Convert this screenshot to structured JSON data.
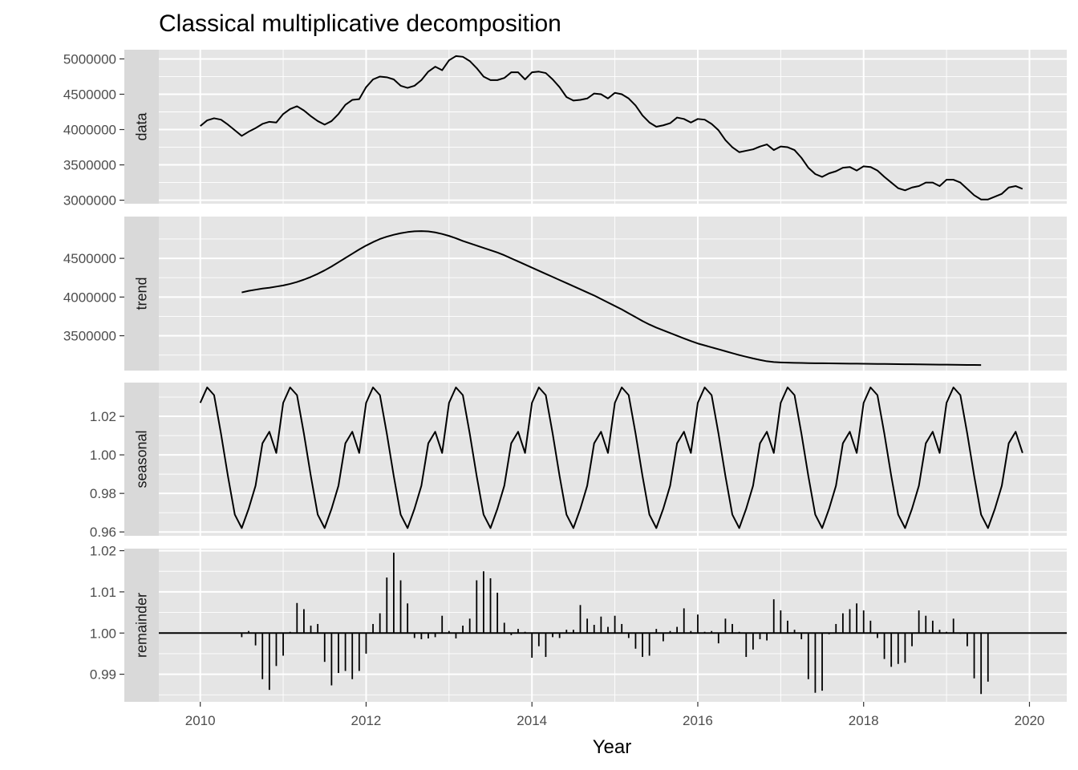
{
  "chart_data": {
    "type": "line",
    "title": "Classical multiplicative decomposition",
    "xlabel": "Year",
    "x_ticks": [
      2010,
      2012,
      2014,
      2016,
      2018,
      2020
    ],
    "xlim": [
      2009.5,
      2020.45
    ],
    "x_start": 2010.0,
    "x_step": 0.0833333,
    "grid": true,
    "legend": "none",
    "colors": {
      "panel": "#e5e5e5",
      "strip": "#d9d9d9",
      "grid": "#ffffff",
      "line": "#000000",
      "tick": "#4d4d4d"
    },
    "panels": [
      {
        "name": "data",
        "strip_label": "data",
        "kind": "line",
        "ylim": [
          2950000,
          5130000
        ],
        "y_ticks": [
          3000000,
          3500000,
          4000000,
          4500000,
          5000000
        ],
        "y_tick_labels": [
          "3000000",
          "3500000",
          "4000000",
          "4500000",
          "5000000"
        ],
        "values": [
          4050000,
          4130000,
          4160000,
          4140000,
          4070000,
          3990000,
          3910000,
          3970000,
          4020000,
          4080000,
          4110000,
          4100000,
          4220000,
          4290000,
          4330000,
          4270000,
          4190000,
          4120000,
          4070000,
          4120000,
          4220000,
          4350000,
          4420000,
          4430000,
          4600000,
          4710000,
          4750000,
          4740000,
          4710000,
          4620000,
          4590000,
          4620000,
          4700000,
          4820000,
          4890000,
          4840000,
          4980000,
          5040000,
          5030000,
          4970000,
          4870000,
          4750000,
          4700000,
          4700000,
          4730000,
          4810000,
          4810000,
          4710000,
          4810000,
          4820000,
          4800000,
          4710000,
          4600000,
          4460000,
          4410000,
          4420000,
          4440000,
          4510000,
          4500000,
          4440000,
          4520000,
          4500000,
          4440000,
          4340000,
          4200000,
          4100000,
          4040000,
          4060000,
          4090000,
          4170000,
          4150000,
          4100000,
          4150000,
          4140000,
          4080000,
          3990000,
          3850000,
          3750000,
          3680000,
          3700000,
          3720000,
          3760000,
          3790000,
          3710000,
          3760000,
          3750000,
          3710000,
          3600000,
          3460000,
          3370000,
          3330000,
          3380000,
          3410000,
          3460000,
          3470000,
          3420000,
          3480000,
          3470000,
          3420000,
          3330000,
          3250000,
          3170000,
          3140000,
          3180000,
          3200000,
          3250000,
          3250000,
          3200000,
          3290000,
          3290000,
          3250000,
          3160000,
          3070000,
          3010000,
          3010000,
          3050000,
          3090000,
          3180000,
          3200000,
          3160000
        ]
      },
      {
        "name": "trend",
        "strip_label": "trend",
        "kind": "line",
        "ylim": [
          3050000,
          5040000
        ],
        "y_ticks": [
          3500000,
          4000000,
          4500000
        ],
        "y_tick_labels": [
          "3500000",
          "4000000",
          "4500000"
        ],
        "x_start": 2010.5,
        "values": [
          4060000,
          4080000,
          4095000,
          4110000,
          4120000,
          4135000,
          4150000,
          4170000,
          4195000,
          4225000,
          4260000,
          4300000,
          4345000,
          4395000,
          4450000,
          4505000,
          4560000,
          4615000,
          4665000,
          4710000,
          4750000,
          4780000,
          4805000,
          4825000,
          4840000,
          4850000,
          4852000,
          4848000,
          4835000,
          4815000,
          4790000,
          4760000,
          4725000,
          4695000,
          4665000,
          4635000,
          4605000,
          4575000,
          4540000,
          4500000,
          4460000,
          4420000,
          4380000,
          4340000,
          4300000,
          4260000,
          4220000,
          4180000,
          4140000,
          4100000,
          4060000,
          4020000,
          3975000,
          3930000,
          3885000,
          3840000,
          3790000,
          3740000,
          3690000,
          3645000,
          3605000,
          3570000,
          3535000,
          3500000,
          3465000,
          3432000,
          3400000,
          3375000,
          3350000,
          3325000,
          3300000,
          3275000,
          3250000,
          3228000,
          3207000,
          3187000,
          3170000,
          3160000,
          3155000,
          3152000,
          3150000,
          3148000,
          3146000,
          3145000,
          3144000,
          3143000,
          3142000,
          3141000,
          3140000,
          3139000,
          3138000,
          3137000,
          3136000,
          3135000,
          3134000,
          3133000,
          3132000,
          3131000,
          3130000,
          3129000,
          3128000,
          3127000,
          3126000,
          3125000,
          3124000,
          3123000,
          3122000,
          3121000
        ]
      },
      {
        "name": "seasonal",
        "strip_label": "seasonal",
        "kind": "line",
        "ylim": [
          0.958,
          1.0375
        ],
        "y_ticks": [
          0.96,
          0.98,
          1.0,
          1.02
        ],
        "y_tick_labels": [
          "0.96",
          "0.98",
          "1.00",
          "1.02"
        ],
        "season": [
          1.027,
          1.035,
          1.031,
          1.011,
          0.989,
          0.969,
          0.962,
          0.972,
          0.984,
          1.006,
          1.012,
          1.001
        ],
        "n": 120
      },
      {
        "name": "remainder",
        "strip_label": "remainder",
        "kind": "bar",
        "baseline": 1.0,
        "ylim": [
          0.9833,
          1.0205
        ],
        "y_ticks": [
          0.99,
          1.0,
          1.01,
          1.02
        ],
        "y_tick_labels": [
          "0.99",
          "1.00",
          "1.01",
          "1.02"
        ],
        "x_start": 2010.5,
        "values": [
          0.999,
          1.0005,
          0.997,
          0.9888,
          0.9862,
          0.992,
          0.9945,
          1.0003,
          1.0073,
          1.0058,
          1.0018,
          1.0022,
          0.993,
          0.9873,
          0.9903,
          0.9908,
          0.9888,
          0.9908,
          0.995,
          1.0022,
          1.0048,
          1.0135,
          1.0195,
          1.0128,
          1.0072,
          0.9988,
          0.9985,
          0.9987,
          0.999,
          1.0042,
          1.0005,
          0.9987,
          1.0018,
          1.0035,
          1.0128,
          1.015,
          1.0133,
          1.0098,
          1.0025,
          0.9995,
          1.001,
          1.0003,
          0.994,
          0.9968,
          0.9942,
          0.999,
          0.9988,
          1.0008,
          1.0008,
          1.0068,
          1.0035,
          1.002,
          1.004,
          1.0015,
          1.0042,
          1.0022,
          0.9988,
          0.9962,
          0.9942,
          0.9945,
          1.001,
          0.998,
          1.0005,
          1.0015,
          1.006,
          1.0005,
          1.0045,
          1.0003,
          1.0005,
          0.9975,
          1.0035,
          1.0022,
          1.0003,
          0.9942,
          0.996,
          0.9985,
          0.9982,
          1.0082,
          1.0055,
          1.003,
          1.0008,
          0.9985,
          0.9888,
          0.9855,
          0.986,
          0.9997,
          1.0022,
          1.0048,
          1.0058,
          1.0072,
          1.0055,
          1.003,
          0.9988,
          0.9937,
          0.9918,
          0.9925,
          0.9928,
          0.9968,
          1.0055,
          1.0042,
          1.003,
          1.0008,
          1.0003,
          1.0035,
          0.9998,
          0.9968,
          0.989,
          0.9852,
          0.9882
        ]
      }
    ]
  }
}
